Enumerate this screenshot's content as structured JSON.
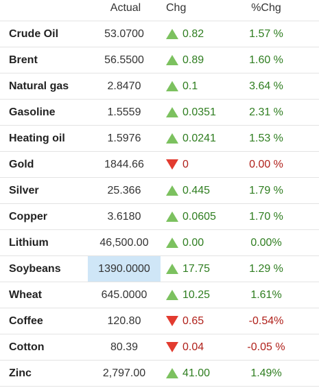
{
  "headers": {
    "actual": "Actual",
    "chg": "Chg",
    "pct": "%Chg"
  },
  "colors": {
    "up_arrow": "#7cc15f",
    "down_arrow": "#e23b2f",
    "up_text": "#2e7d1f",
    "down_text": "#b0201a",
    "highlight": "#cfe6f7"
  },
  "rows": [
    {
      "name": "Crude Oil",
      "actual": "53.0700",
      "direction": "up",
      "chg": "0.82",
      "pct": "1.57 %"
    },
    {
      "name": "Brent",
      "actual": "56.5500",
      "direction": "up",
      "chg": "0.89",
      "pct": "1.60 %"
    },
    {
      "name": "Natural gas",
      "actual": "2.8470",
      "direction": "up",
      "chg": "0.1",
      "pct": "3.64 %"
    },
    {
      "name": "Gasoline",
      "actual": "1.5559",
      "direction": "up",
      "chg": "0.0351",
      "pct": "2.31 %"
    },
    {
      "name": "Heating oil",
      "actual": "1.5976",
      "direction": "up",
      "chg": "0.0241",
      "pct": "1.53 %"
    },
    {
      "name": "Gold",
      "actual": "1844.66",
      "direction": "down",
      "chg": "0",
      "pct": "0.00 %"
    },
    {
      "name": "Silver",
      "actual": "25.366",
      "direction": "up",
      "chg": "0.445",
      "pct": "1.79 %"
    },
    {
      "name": "Copper",
      "actual": "3.6180",
      "direction": "up",
      "chg": "0.0605",
      "pct": "1.70 %"
    },
    {
      "name": "Lithium",
      "actual": "46,500.00",
      "direction": "up",
      "chg": "0.00",
      "pct": "0.00%"
    },
    {
      "name": "Soybeans",
      "actual": "1390.0000",
      "direction": "up",
      "chg": "17.75",
      "pct": "1.29 %",
      "highlight": true
    },
    {
      "name": "Wheat",
      "actual": "645.0000",
      "direction": "up",
      "chg": "10.25",
      "pct": "1.61%"
    },
    {
      "name": "Coffee",
      "actual": "120.80",
      "direction": "down",
      "chg": "0.65",
      "pct": "-0.54%"
    },
    {
      "name": "Cotton",
      "actual": "80.39",
      "direction": "down",
      "chg": "0.04",
      "pct": "-0.05 %"
    },
    {
      "name": "Zinc",
      "actual": "2,797.00",
      "direction": "up",
      "chg": "41.00",
      "pct": "1.49%"
    }
  ]
}
